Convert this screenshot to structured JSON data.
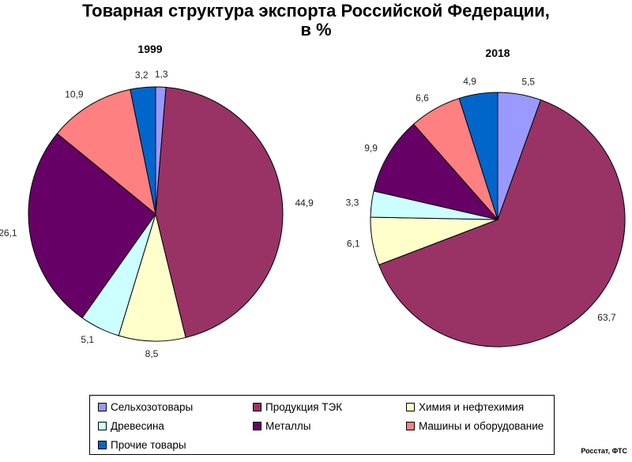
{
  "header": {
    "title_line1": "Товарная структура экспорта Российской Федерации,",
    "title_line2": "в %"
  },
  "chart_data": [
    {
      "type": "pie",
      "title": "1999",
      "slices": [
        {
          "label": "Сельхозотовары",
          "value": 1.3,
          "display": "1,3",
          "color": "#9999ff"
        },
        {
          "label": "Продукция ТЭК",
          "value": 44.9,
          "display": "44,9",
          "color": "#993366"
        },
        {
          "label": "Химия и нефтехимия",
          "value": 8.5,
          "display": "8,5",
          "color": "#ffffcc"
        },
        {
          "label": "Древесина",
          "value": 5.1,
          "display": "5,1",
          "color": "#ccffff"
        },
        {
          "label": "Металлы",
          "value": 26.1,
          "display": "26,1",
          "color": "#660066"
        },
        {
          "label": "Машины и оборудование",
          "value": 10.9,
          "display": "10,9",
          "color": "#ff8080"
        },
        {
          "label": "Прочие товары",
          "value": 3.2,
          "display": "3,2",
          "color": "#0066cc"
        }
      ]
    },
    {
      "type": "pie",
      "title": "2018",
      "slices": [
        {
          "label": "Сельхозотовары",
          "value": 5.5,
          "display": "5,5",
          "color": "#9999ff"
        },
        {
          "label": "Продукция ТЭК",
          "value": 63.7,
          "display": "63,7",
          "color": "#993366"
        },
        {
          "label": "Химия и нефтехимия",
          "value": 6.1,
          "display": "6,1",
          "color": "#ffffcc"
        },
        {
          "label": "Древесина",
          "value": 3.3,
          "display": "3,3",
          "color": "#ccffff"
        },
        {
          "label": "Металлы",
          "value": 9.9,
          "display": "9,9",
          "color": "#660066"
        },
        {
          "label": "Машины и оборудование",
          "value": 6.6,
          "display": "6,6",
          "color": "#ff8080"
        },
        {
          "label": "Прочие товары",
          "value": 4.9,
          "display": "4,9",
          "color": "#0066cc"
        }
      ]
    }
  ],
  "legend": {
    "items": [
      {
        "label": "Сельхозотовары",
        "color": "#9999ff"
      },
      {
        "label": "Продукция ТЭК",
        "color": "#993366"
      },
      {
        "label": "Химия и нефтехимия",
        "color": "#ffffcc"
      },
      {
        "label": "Древесина",
        "color": "#ccffff"
      },
      {
        "label": "Металлы",
        "color": "#660066"
      },
      {
        "label": "Машины и оборудование",
        "color": "#ff8080"
      },
      {
        "label": "Прочие товары",
        "color": "#0066cc"
      }
    ]
  },
  "footer": {
    "source": "Росстат, ФТС"
  }
}
